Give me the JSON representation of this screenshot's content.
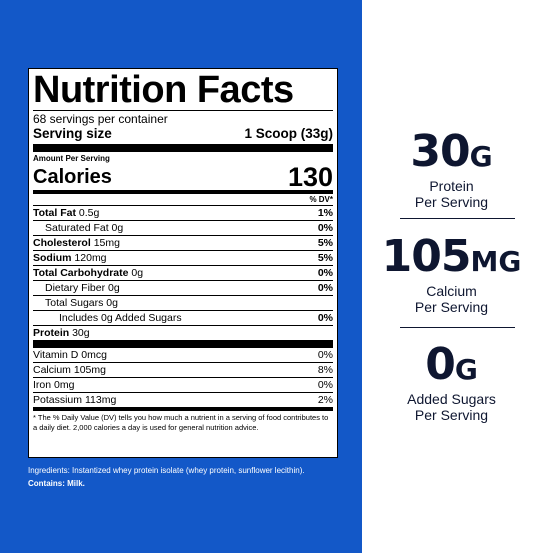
{
  "label": {
    "title": "Nutrition Facts",
    "servings_per_container": "68 servings per container",
    "serving_size_label": "Serving size",
    "serving_size_value": "1 Scoop (33g)",
    "amount_per_serving": "Amount Per Serving",
    "calories_label": "Calories",
    "calories_value": "130",
    "dv_header": "% DV*",
    "nutrients": [
      {
        "name": "Total Fat",
        "amount": "0.5g",
        "dv": "1%"
      },
      {
        "name": "Saturated Fat",
        "amount": "0g",
        "dv": "0%"
      },
      {
        "name": "Cholesterol",
        "amount": "15mg",
        "dv": "5%"
      },
      {
        "name": "Sodium",
        "amount": "120mg",
        "dv": "5%"
      },
      {
        "name": "Total Carbohydrate",
        "amount": "0g",
        "dv": "0%"
      },
      {
        "name": "Dietary Fiber",
        "amount": "0g",
        "dv": "0%"
      },
      {
        "name": "Total Sugars",
        "amount": "0g",
        "dv": ""
      },
      {
        "name": "Includes 0g Added Sugars",
        "amount": "",
        "dv": "0%"
      },
      {
        "name": "Protein",
        "amount": "30g",
        "dv": ""
      }
    ],
    "vitamins": [
      {
        "name": "Vitamin D",
        "amount": "0mcg",
        "dv": "0%"
      },
      {
        "name": "Calcium",
        "amount": "105mg",
        "dv": "8%"
      },
      {
        "name": "Iron",
        "amount": "0mg",
        "dv": "0%"
      },
      {
        "name": "Potassium",
        "amount": "113mg",
        "dv": "2%"
      }
    ],
    "footnote": "* The % Daily Value (DV) tells you how much a nutrient in a serving of food contributes to a daily diet. 2,000 calories a day is used for general nutrition advice."
  },
  "ingredients": "Ingredients: Instantized whey protein isolate (whey protein, sunflower lecithin).",
  "contains": "Contains: Milk.",
  "stats": [
    {
      "value": "30",
      "unit": "G",
      "line1": "Protein",
      "line2": "Per Serving"
    },
    {
      "value": "105",
      "unit": "MG",
      "line1": "Calcium",
      "line2": "Per Serving"
    },
    {
      "value": "0",
      "unit": "G",
      "line1": "Added Sugars",
      "line2": "Per Serving"
    }
  ],
  "colors": {
    "panel": "#1358c8",
    "stat_text": "#0e1630"
  }
}
